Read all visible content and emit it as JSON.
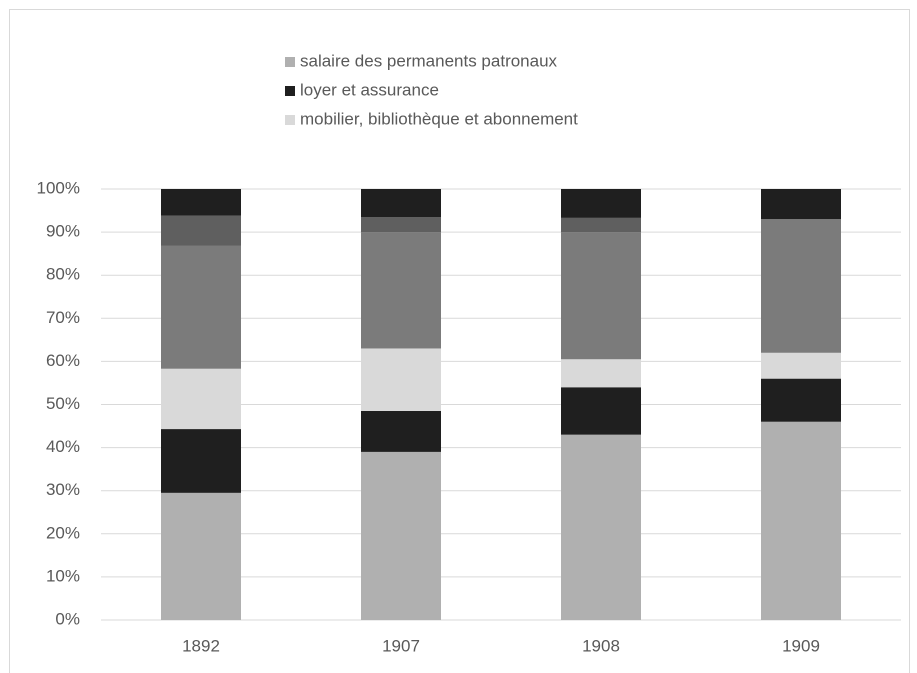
{
  "chart_data": {
    "type": "stacked_bar",
    "categories": [
      "1892",
      "1907",
      "1908",
      "1909"
    ],
    "series": [
      {
        "name": "salaire des permanents patronaux",
        "color": "#b0b0b0",
        "values": [
          29.5,
          39,
          43,
          46
        ]
      },
      {
        "name": "loyer et assurance",
        "color": "#1f1f1f",
        "values": [
          14.8,
          9.5,
          11,
          10
        ]
      },
      {
        "name": "mobilier, bibliothèque et abonnement",
        "color": "#d9d9d9",
        "values": [
          14,
          14.5,
          6.5,
          6
        ]
      },
      {
        "color": "#7b7b7b",
        "values": [
          28.5,
          27,
          29.5,
          31
        ]
      },
      {
        "color": "#5f5f5f",
        "values": [
          7,
          3.5,
          3.3,
          0
        ]
      },
      {
        "color": "#1f1f1f",
        "values": [
          6.2,
          6.5,
          6.7,
          7
        ]
      }
    ],
    "ylim": [
      0,
      100
    ],
    "yticks": [
      {
        "value": 0,
        "label": "0%"
      },
      {
        "value": 10,
        "label": "10%"
      },
      {
        "value": 20,
        "label": "20%"
      },
      {
        "value": 30,
        "label": "30%"
      },
      {
        "value": 40,
        "label": "40%"
      },
      {
        "value": 50,
        "label": "50%"
      },
      {
        "value": 60,
        "label": "60%"
      },
      {
        "value": 70,
        "label": "70%"
      },
      {
        "value": 80,
        "label": "80%"
      },
      {
        "value": 90,
        "label": "90%"
      },
      {
        "value": 100,
        "label": "100%"
      }
    ],
    "grid": true
  }
}
